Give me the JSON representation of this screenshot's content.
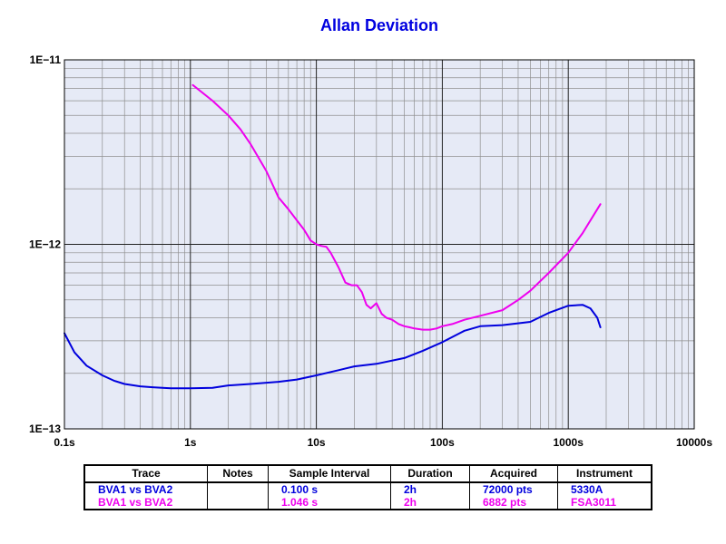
{
  "chart_data": {
    "type": "line",
    "title": "Allan Deviation",
    "xscale": "log",
    "yscale": "log",
    "xlim": [
      0.1,
      10000
    ],
    "ylim": [
      1e-13,
      1e-11
    ],
    "x_ticks": [
      {
        "value": 0.1,
        "label": "0.1s"
      },
      {
        "value": 1,
        "label": "1s"
      },
      {
        "value": 10,
        "label": "10s"
      },
      {
        "value": 100,
        "label": "100s"
      },
      {
        "value": 1000,
        "label": "1000s"
      },
      {
        "value": 10000,
        "label": "10000s"
      }
    ],
    "y_ticks": [
      {
        "value": 1e-11,
        "label": "1E−11"
      },
      {
        "value": 1e-12,
        "label": "1E−12"
      },
      {
        "value": 1e-13,
        "label": "1E−13"
      }
    ],
    "grid": true,
    "plot_background": "#e6eaf6",
    "series": [
      {
        "name": "BVA1 vs BVA2",
        "color": "#0000dd",
        "x": [
          0.1,
          0.12,
          0.15,
          0.2,
          0.25,
          0.3,
          0.4,
          0.5,
          0.6,
          0.7,
          1.0,
          1.5,
          2,
          3,
          5,
          7,
          10,
          15,
          20,
          30,
          50,
          70,
          100,
          150,
          200,
          300,
          500,
          700,
          1000,
          1300,
          1500,
          1700,
          1800
        ],
        "y": [
          3.3e-13,
          2.6e-13,
          2.2e-13,
          1.95e-13,
          1.82e-13,
          1.75e-13,
          1.7e-13,
          1.68e-13,
          1.67e-13,
          1.66e-13,
          1.66e-13,
          1.67e-13,
          1.72e-13,
          1.75e-13,
          1.8e-13,
          1.85e-13,
          1.95e-13,
          2.08e-13,
          2.18e-13,
          2.25e-13,
          2.42e-13,
          2.65e-13,
          2.95e-13,
          3.4e-13,
          3.6e-13,
          3.65e-13,
          3.8e-13,
          4.25e-13,
          4.65e-13,
          4.7e-13,
          4.5e-13,
          4e-13,
          3.55e-13
        ]
      },
      {
        "name": "BVA1 vs BVA2",
        "color": "#ee00ee",
        "x": [
          1.046,
          1.5,
          2,
          2.5,
          3,
          4,
          5,
          6,
          7,
          8,
          9,
          10,
          11,
          12,
          13,
          15,
          17,
          19,
          21,
          23,
          25,
          27,
          30,
          33,
          36,
          40,
          45,
          50,
          55,
          60,
          70,
          80,
          90,
          100,
          120,
          150,
          200,
          300,
          400,
          500,
          700,
          1000,
          1300,
          1800
        ],
        "y": [
          7.3e-12,
          6e-12,
          5e-12,
          4.2e-12,
          3.5e-12,
          2.5e-12,
          1.8e-12,
          1.55e-12,
          1.35e-12,
          1.2e-12,
          1.05e-12,
          1e-12,
          9.8e-13,
          9.7e-13,
          9e-13,
          7.5e-13,
          6.2e-13,
          6e-13,
          6e-13,
          5.5e-13,
          4.7e-13,
          4.5e-13,
          4.8e-13,
          4.2e-13,
          4e-13,
          3.9e-13,
          3.7e-13,
          3.6e-13,
          3.55e-13,
          3.5e-13,
          3.45e-13,
          3.45e-13,
          3.5e-13,
          3.6e-13,
          3.7e-13,
          3.9e-13,
          4.1e-13,
          4.4e-13,
          5e-13,
          5.6e-13,
          7e-13,
          9e-13,
          1.15e-12,
          1.65e-12
        ]
      }
    ]
  },
  "legend_table": {
    "headers": [
      "Trace",
      "Notes",
      "Sample Interval",
      "Duration",
      "Acquired",
      "Instrument"
    ],
    "rows": [
      {
        "trace": "BVA1 vs BVA2",
        "notes": "",
        "interval": "0.100 s",
        "duration": "2h",
        "acquired": "72000 pts",
        "instrument": "5330A",
        "color": "#0000dd"
      },
      {
        "trace": "BVA1 vs BVA2",
        "notes": "",
        "interval": "1.046 s",
        "duration": "2h",
        "acquired": "6882 pts",
        "instrument": "FSA3011",
        "color": "#ee00ee"
      }
    ]
  }
}
